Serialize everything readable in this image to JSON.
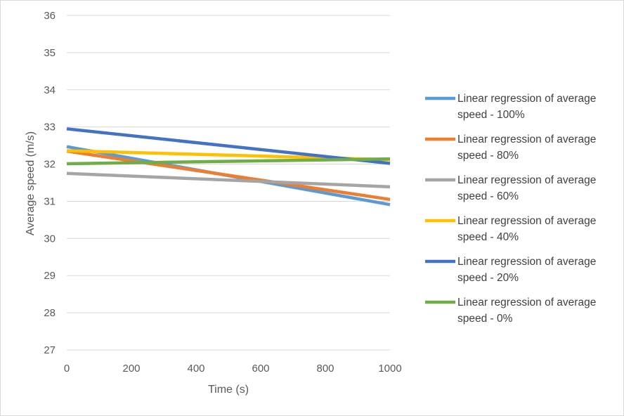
{
  "chart_data": {
    "type": "line",
    "title": "",
    "xlabel": "Time (s)",
    "ylabel": "Average speed (m/s)",
    "xlim": [
      0,
      1000
    ],
    "ylim": [
      27,
      36
    ],
    "x_ticks": [
      0,
      200,
      400,
      600,
      800,
      1000
    ],
    "y_ticks": [
      27,
      28,
      29,
      30,
      31,
      32,
      33,
      34,
      35,
      36
    ],
    "grid": "horizontal",
    "legend_position": "right",
    "x": [
      0,
      1000
    ],
    "series": [
      {
        "name": "Linear regression of average speed - 100%",
        "color": "#5b9bd5",
        "values": [
          32.47,
          30.91
        ]
      },
      {
        "name": "Linear regression of average speed - 80%",
        "color": "#ed7d31",
        "values": [
          32.35,
          31.05
        ]
      },
      {
        "name": "Linear regression of average speed - 60%",
        "color": "#a5a5a5",
        "values": [
          31.75,
          31.39
        ]
      },
      {
        "name": "Linear regression of average speed - 40%",
        "color": "#ffc000",
        "values": [
          32.36,
          32.12
        ]
      },
      {
        "name": "Linear regression of average speed - 20%",
        "color": "#4472c4",
        "values": [
          32.95,
          32.02
        ]
      },
      {
        "name": "Linear regression of average speed - 0%",
        "color": "#70ad47",
        "values": [
          32.01,
          32.14
        ]
      }
    ]
  }
}
